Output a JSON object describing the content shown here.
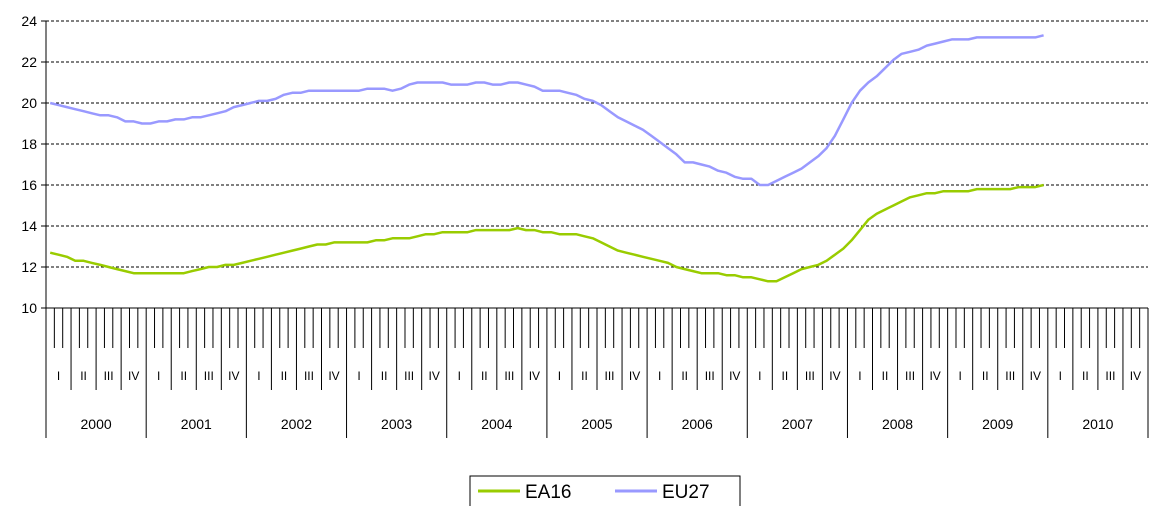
{
  "chart_data": {
    "type": "line",
    "ylim": [
      10,
      24
    ],
    "yticks": [
      10,
      12,
      14,
      16,
      18,
      20,
      22,
      24
    ],
    "grid": true,
    "legend_position": "bottom-center",
    "years": [
      "2000",
      "2001",
      "2002",
      "2003",
      "2004",
      "2005",
      "2006",
      "2007",
      "2008",
      "2009",
      "2010"
    ],
    "quarters": [
      "I",
      "II",
      "III",
      "IV"
    ],
    "months_per_year": 12,
    "series": [
      {
        "name": "EA16",
        "color": "#99cc00",
        "values": [
          12.7,
          12.6,
          12.5,
          12.3,
          12.3,
          12.2,
          12.1,
          12.0,
          11.9,
          11.8,
          11.7,
          11.7,
          11.7,
          11.7,
          11.7,
          11.7,
          11.7,
          11.8,
          11.9,
          12.0,
          12.0,
          12.1,
          12.1,
          12.2,
          12.3,
          12.4,
          12.5,
          12.6,
          12.7,
          12.8,
          12.9,
          13.0,
          13.1,
          13.1,
          13.2,
          13.2,
          13.2,
          13.2,
          13.2,
          13.3,
          13.3,
          13.4,
          13.4,
          13.4,
          13.5,
          13.6,
          13.6,
          13.7,
          13.7,
          13.7,
          13.7,
          13.8,
          13.8,
          13.8,
          13.8,
          13.8,
          13.9,
          13.8,
          13.8,
          13.7,
          13.7,
          13.6,
          13.6,
          13.6,
          13.5,
          13.4,
          13.2,
          13.0,
          12.8,
          12.7,
          12.6,
          12.5,
          12.4,
          12.3,
          12.2,
          12.0,
          11.9,
          11.8,
          11.7,
          11.7,
          11.7,
          11.6,
          11.6,
          11.5,
          11.5,
          11.4,
          11.3,
          11.3,
          11.5,
          11.7,
          11.9,
          12.0,
          12.1,
          12.3,
          12.6,
          12.9,
          13.3,
          13.8,
          14.3,
          14.6,
          14.8,
          15.0,
          15.2,
          15.4,
          15.5,
          15.6,
          15.6,
          15.7,
          15.7,
          15.7,
          15.7,
          15.8,
          15.8,
          15.8,
          15.8,
          15.8,
          15.9,
          15.9,
          15.9,
          16.0
        ]
      },
      {
        "name": "EU27",
        "color": "#9999ff",
        "values": [
          20.0,
          19.9,
          19.8,
          19.7,
          19.6,
          19.5,
          19.4,
          19.4,
          19.3,
          19.1,
          19.1,
          19.0,
          19.0,
          19.1,
          19.1,
          19.2,
          19.2,
          19.3,
          19.3,
          19.4,
          19.5,
          19.6,
          19.8,
          19.9,
          20.0,
          20.1,
          20.1,
          20.2,
          20.4,
          20.5,
          20.5,
          20.6,
          20.6,
          20.6,
          20.6,
          20.6,
          20.6,
          20.6,
          20.7,
          20.7,
          20.7,
          20.6,
          20.7,
          20.9,
          21.0,
          21.0,
          21.0,
          21.0,
          20.9,
          20.9,
          20.9,
          21.0,
          21.0,
          20.9,
          20.9,
          21.0,
          21.0,
          20.9,
          20.8,
          20.6,
          20.6,
          20.6,
          20.5,
          20.4,
          20.2,
          20.1,
          19.9,
          19.6,
          19.3,
          19.1,
          18.9,
          18.7,
          18.4,
          18.1,
          17.8,
          17.5,
          17.1,
          17.1,
          17.0,
          16.9,
          16.7,
          16.6,
          16.4,
          16.3,
          16.3,
          16.0,
          16.0,
          16.2,
          16.4,
          16.6,
          16.8,
          17.1,
          17.4,
          17.8,
          18.4,
          19.2,
          20.0,
          20.6,
          21.0,
          21.3,
          21.7,
          22.1,
          22.4,
          22.5,
          22.6,
          22.8,
          22.9,
          23.0,
          23.1,
          23.1,
          23.1,
          23.2,
          23.2,
          23.2,
          23.2,
          23.2,
          23.2,
          23.2,
          23.2,
          23.3
        ]
      }
    ]
  }
}
